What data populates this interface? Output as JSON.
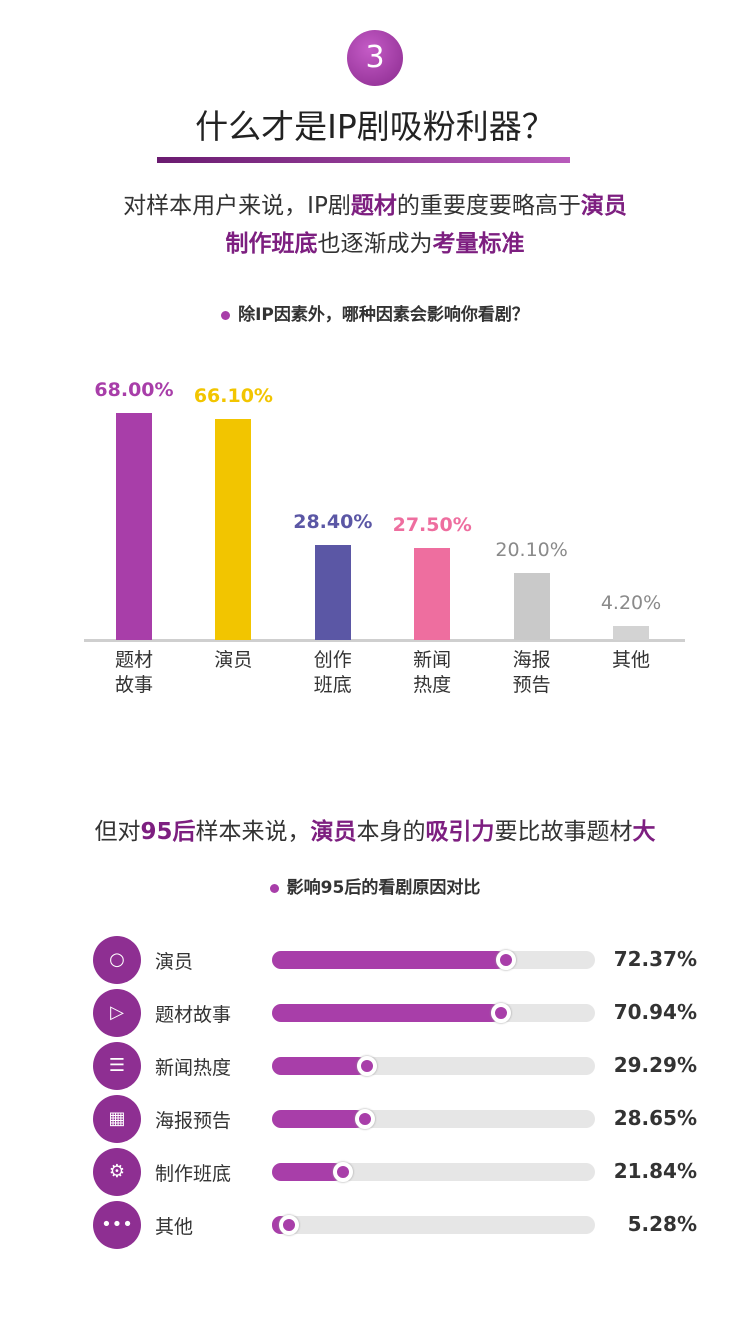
{
  "badge": "3",
  "title": "什么才是IP剧吸粉利器？",
  "intro": [
    [
      {
        "text": "对样本用户来说，IP剧",
        "highlight": false
      },
      {
        "text": "题材",
        "highlight": true
      },
      {
        "text": "的重要度要略高于",
        "highlight": false
      },
      {
        "text": "演员",
        "highlight": true
      }
    ],
    [
      {
        "text": "制作班底",
        "highlight": true
      },
      {
        "text": "也逐渐成为",
        "highlight": false
      },
      {
        "text": "考量标准",
        "highlight": true
      }
    ]
  ],
  "chart_data": [
    {
      "type": "bar",
      "title": "除IP因素外，哪种因素会影响你看剧？",
      "categories": [
        "题材故事",
        "演员",
        "创作班底",
        "新闻热度",
        "海报预告",
        "其他"
      ],
      "values": [
        68.0,
        66.1,
        28.4,
        27.5,
        20.1,
        4.2
      ],
      "value_labels": [
        "68.00%",
        "66.10%",
        "28.40%",
        "27.50%",
        "20.10%",
        "4.20%"
      ],
      "colors": [
        "#a83ea9",
        "#f2c500",
        "#5b57a5",
        "#ee6e9f",
        "#c9c9c9",
        "#d3d3d3"
      ],
      "label_colors": [
        "#a83ea9",
        "#f2c500",
        "#5b57a5",
        "#ee6e9f",
        "#8a8a8a",
        "#8a8a8a"
      ]
    },
    {
      "type": "progress",
      "subtitle": [
        {
          "text": "但对",
          "highlight": false
        },
        {
          "text": "95后",
          "highlight": true
        },
        {
          "text": "样本来说，",
          "highlight": false
        },
        {
          "text": "演员",
          "highlight": true
        },
        {
          "text": "本身的",
          "highlight": false
        },
        {
          "text": "吸引力",
          "highlight": true
        },
        {
          "text": "要比故事题材",
          "highlight": false
        },
        {
          "text": "大",
          "highlight": true
        }
      ],
      "title": "影响95后的看剧原因对比",
      "categories": [
        "演员",
        "题材故事",
        "新闻热度",
        "海报预告",
        "制作班底",
        "其他"
      ],
      "values": [
        72.37,
        70.94,
        29.29,
        28.65,
        21.84,
        5.28
      ],
      "value_labels": [
        "72.37%",
        "70.94%",
        "29.29%",
        "28.65%",
        "21.84%",
        "5.28%"
      ],
      "color": "#a83ea9"
    }
  ]
}
